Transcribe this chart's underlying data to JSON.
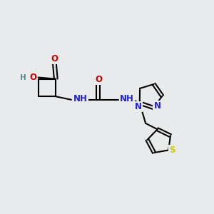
{
  "bg_color": "#e8eaeb",
  "bond_color": "#000000",
  "bond_width": 1.5,
  "atom_colors": {
    "C": "#000000",
    "H": "#5a8a8a",
    "O": "#cc0000",
    "N": "#2222cc",
    "S": "#cccc00"
  },
  "font_size": 8.5,
  "font_size_H": 7.5
}
